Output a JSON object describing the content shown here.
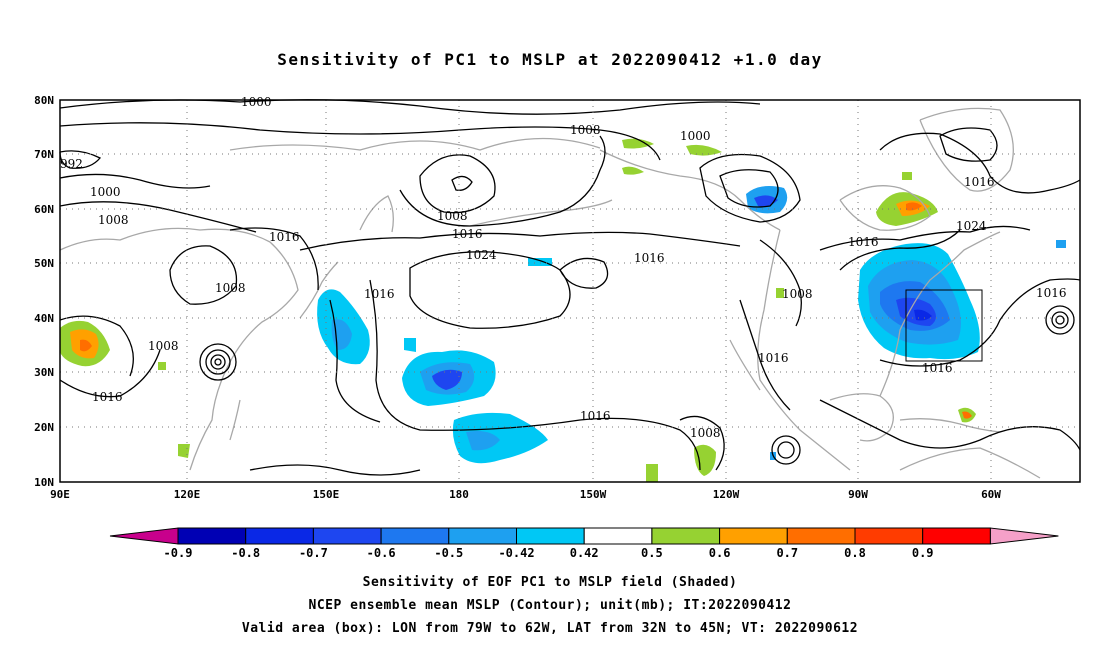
{
  "title": "Sensitivity of PC1 to MSLP at 2022090412 +1.0 day",
  "lat_labels": [
    "80N",
    "70N",
    "60N",
    "50N",
    "40N",
    "30N",
    "20N",
    "10N"
  ],
  "lon_labels": [
    "90E",
    "120E",
    "150E",
    "180",
    "150W",
    "120W",
    "90W",
    "60W"
  ],
  "contour_labels": [
    "1000",
    "1008",
    "1000",
    "992",
    "1000",
    "1008",
    "1016",
    "1008",
    "1016",
    "1024",
    "1008",
    "1016",
    "1008",
    "1016",
    "1016",
    "1016",
    "1008",
    "1016",
    "1024",
    "1016",
    "1008",
    "1016",
    "1016",
    "1016"
  ],
  "colorbar": {
    "labels": [
      "-0.9",
      "-0.8",
      "-0.7",
      "-0.6",
      "-0.5",
      "-0.42",
      "0.42",
      "0.5",
      "0.6",
      "0.7",
      "0.8",
      "0.9"
    ],
    "colors": [
      "#0000b4",
      "#0a28e6",
      "#1e46f0",
      "#1e78f0",
      "#1ea0f0",
      "#00c8f5",
      "#ffffff",
      "#96d232",
      "#ffa000",
      "#ff6e00",
      "#ff3c00",
      "#ff0000"
    ],
    "min_arrow_color": "#c8008c",
    "max_arrow_color": "#f5a0c8"
  },
  "captions": [
    "Sensitivity of EOF PC1 to MSLP field (Shaded)",
    "NCEP ensemble mean MSLP (Contour); unit(mb); IT:2022090412",
    "Valid area (box): LON from 79W to 62W, LAT from 32N to 45N; VT: 2022090612"
  ]
}
